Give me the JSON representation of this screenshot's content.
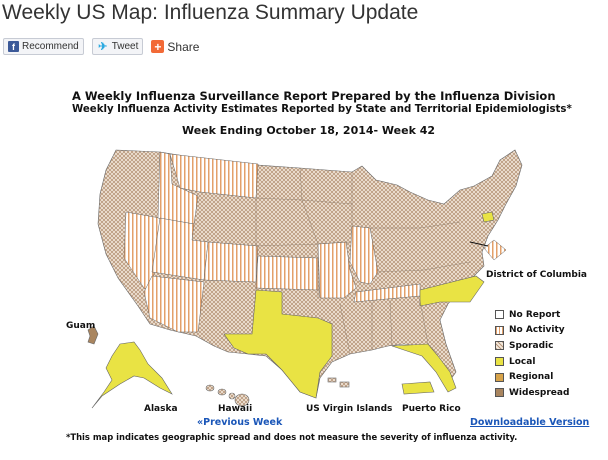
{
  "page": {
    "title": "Weekly US Map: Influenza Summary Update"
  },
  "share": {
    "recommend": "Recommend",
    "tweet": "Tweet",
    "share": "Share"
  },
  "report": {
    "heading1": "A Weekly Influenza Surveillance Report Prepared by the Influenza Division",
    "heading2": "Weekly Influenza Activity Estimates Reported by State and Territorial Epidemiologists*",
    "week": "Week Ending October 18, 2014- Week 42"
  },
  "map_labels": {
    "dc": "District of Columbia",
    "guam": "Guam",
    "alaska": "Alaska",
    "hawaii": "Hawaii",
    "usvi": "US Virgin Islands",
    "puerto_rico": "Puerto Rico"
  },
  "legend": [
    {
      "label": "No Report",
      "key": "no-report"
    },
    {
      "label": "No Activity",
      "key": "no-activity"
    },
    {
      "label": "Sporadic",
      "key": "sporadic"
    },
    {
      "label": "Local",
      "key": "local"
    },
    {
      "label": "Regional",
      "key": "regional"
    },
    {
      "label": "Widespread",
      "key": "widespread"
    }
  ],
  "links": {
    "previous": "«Previous Week",
    "download": "Downloadable Version"
  },
  "footnote": "*This map indicates geographic spread and does not measure the severity of influenza activity.",
  "colors": {
    "local": "#e9e344",
    "sporadic_base": "#f4e9dc",
    "sporadic_hatch": "#b7967a",
    "no_activity_stripe": "#e3a06a",
    "widespread": "#a9855f",
    "regional": "#d7a34a",
    "link": "#1a56b8"
  },
  "activity_by_region": {
    "Texas": "Local",
    "Florida": "Local",
    "North Carolina": "Local",
    "Connecticut": "Local",
    "Alaska": "Local",
    "Puerto Rico": "Local",
    "Guam": "Widespread",
    "Nevada": "No Activity",
    "Idaho": "No Activity",
    "Utah": "No Activity",
    "Arizona": "No Activity",
    "Montana": "No Activity",
    "Colorado": "No Activity",
    "Kansas": "No Activity",
    "Missouri": "No Activity",
    "Illinois": "No Activity",
    "Tennessee": "No Activity",
    "District of Columbia": "No Activity",
    "Hawaii": "Sporadic",
    "US Virgin Islands": "Sporadic",
    "All other states": "Sporadic"
  }
}
